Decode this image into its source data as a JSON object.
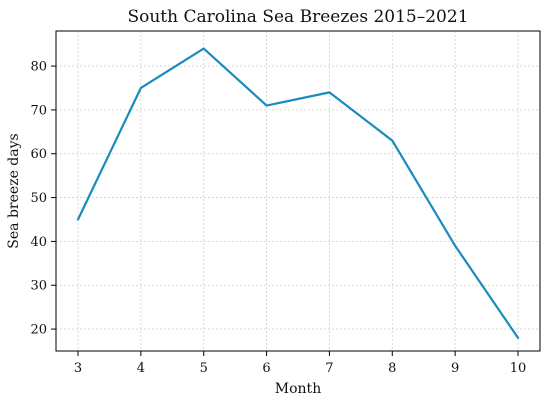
{
  "chart_data": {
    "type": "line",
    "title": "South Carolina Sea Breezes 2015–2021",
    "xlabel": "Month",
    "ylabel": "Sea breeze days",
    "x": [
      3,
      4,
      5,
      6,
      7,
      8,
      9,
      10
    ],
    "series": [
      {
        "values": [
          45,
          75,
          84,
          71,
          74,
          63,
          39,
          18
        ],
        "color": "#1a8bbf"
      }
    ],
    "xlim": [
      2.65,
      10.35
    ],
    "ylim": [
      15,
      88
    ],
    "x_ticks": [
      3,
      4,
      5,
      6,
      7,
      8,
      9,
      10
    ],
    "y_ticks": [
      20,
      30,
      40,
      50,
      60,
      70,
      80
    ],
    "grid": true
  }
}
